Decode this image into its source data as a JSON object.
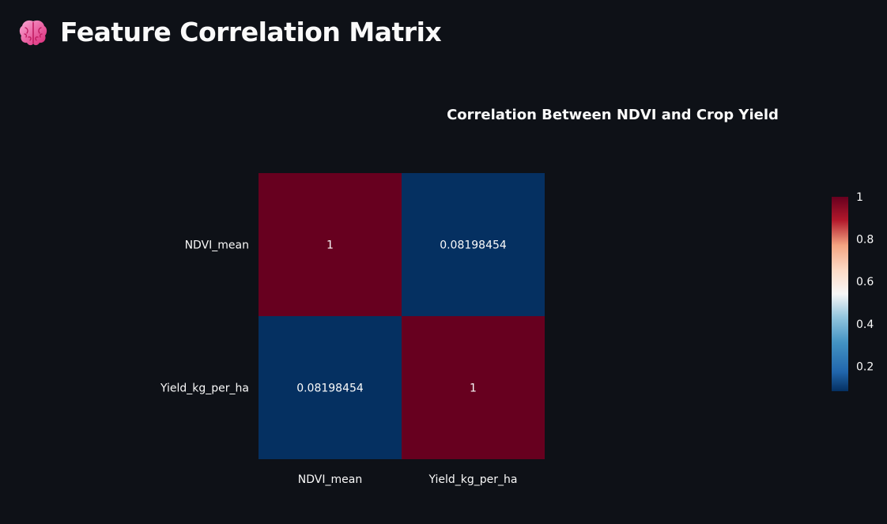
{
  "page": {
    "title": "Feature Correlation Matrix",
    "title_icon": "brain-icon"
  },
  "chart_data": {
    "type": "heatmap",
    "title": "Correlation Between NDVI and Crop Yield",
    "x_categories": [
      "NDVI_mean",
      "Yield_kg_per_ha"
    ],
    "y_categories": [
      "NDVI_mean",
      "Yield_kg_per_ha"
    ],
    "values": [
      [
        1,
        0.08198454
      ],
      [
        0.08198454,
        1
      ]
    ],
    "cell_labels": [
      [
        "1",
        "0.08198454"
      ],
      [
        "0.08198454",
        "1"
      ]
    ],
    "colorscale": "RdBu",
    "color_range": [
      0.08198454,
      1
    ],
    "colorbar_ticks": [
      "1",
      "0.8",
      "0.6",
      "0.4",
      "0.2"
    ],
    "colorbar_tick_values": [
      1,
      0.8,
      0.6,
      0.4,
      0.2
    ],
    "colors": {
      "high": "#67001f",
      "low": "#053061"
    }
  }
}
